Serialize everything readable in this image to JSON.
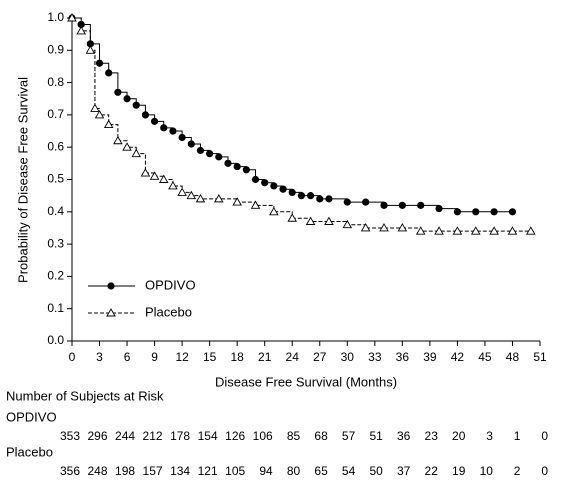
{
  "chart_data": {
    "type": "km",
    "x_label": "Disease Free Survival (Months)",
    "y_label": "Probability of Disease Free Survival",
    "xlim": [
      0,
      51
    ],
    "xticks": [
      0,
      3,
      6,
      9,
      12,
      15,
      18,
      21,
      24,
      27,
      30,
      33,
      36,
      39,
      42,
      45,
      48,
      51
    ],
    "ylim": [
      0,
      1
    ],
    "yticks": [
      {
        "value": 0,
        "label": "0.0"
      },
      0.1,
      0.2,
      0.3,
      0.4,
      0.5,
      0.6,
      0.7,
      0.8,
      0.9,
      {
        "value": 1,
        "label": "1.0"
      }
    ],
    "legend_position": "lower left",
    "series": [
      {
        "name": "OPDIVO",
        "color": "#000000",
        "marker": "circle",
        "dash": "solid",
        "x": [
          0,
          1,
          2,
          3,
          4,
          5,
          6,
          7,
          8,
          9,
          10,
          11,
          12,
          13,
          14,
          15,
          16,
          17,
          18,
          19,
          20,
          21,
          22,
          23,
          24,
          25,
          26,
          27,
          28,
          30,
          32,
          34,
          36,
          38,
          40,
          42,
          44,
          46,
          48
        ],
        "values": [
          1.0,
          0.98,
          0.92,
          0.86,
          0.83,
          0.77,
          0.75,
          0.73,
          0.7,
          0.68,
          0.66,
          0.65,
          0.63,
          0.61,
          0.59,
          0.58,
          0.57,
          0.55,
          0.54,
          0.53,
          0.5,
          0.49,
          0.48,
          0.47,
          0.46,
          0.45,
          0.45,
          0.44,
          0.44,
          0.43,
          0.43,
          0.42,
          0.42,
          0.42,
          0.41,
          0.4,
          0.4,
          0.4,
          0.4
        ]
      },
      {
        "name": "Placebo",
        "color": "#000000",
        "marker": "triangle",
        "dash": "dashed",
        "x": [
          0,
          1,
          2,
          2.5,
          3,
          4,
          5,
          6,
          7,
          8,
          9,
          10,
          11,
          12,
          13,
          14,
          16,
          18,
          20,
          22,
          24,
          26,
          28,
          30,
          32,
          34,
          36,
          38,
          40,
          42,
          44,
          46,
          48,
          50
        ],
        "values": [
          1.0,
          0.96,
          0.9,
          0.72,
          0.7,
          0.67,
          0.62,
          0.6,
          0.58,
          0.52,
          0.51,
          0.5,
          0.48,
          0.46,
          0.45,
          0.44,
          0.44,
          0.43,
          0.42,
          0.4,
          0.38,
          0.37,
          0.37,
          0.36,
          0.35,
          0.35,
          0.35,
          0.34,
          0.34,
          0.34,
          0.34,
          0.34,
          0.34,
          0.34
        ]
      }
    ],
    "risk_table": {
      "title": "Number of Subjects at Risk",
      "groups": [
        {
          "name": "OPDIVO",
          "counts": [
            353,
            296,
            244,
            212,
            178,
            154,
            126,
            106,
            85,
            68,
            57,
            51,
            36,
            23,
            20,
            3,
            1,
            0
          ]
        },
        {
          "name": "Placebo",
          "counts": [
            356,
            248,
            198,
            157,
            134,
            121,
            105,
            94,
            80,
            65,
            54,
            50,
            37,
            22,
            19,
            10,
            2,
            0
          ]
        }
      ]
    }
  }
}
